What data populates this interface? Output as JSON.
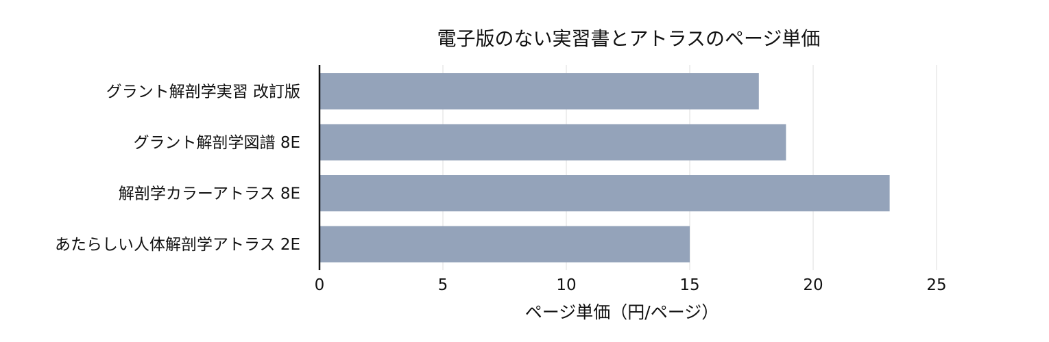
{
  "chart_data": {
    "type": "bar",
    "orientation": "horizontal",
    "title": "電子版のない実習書とアトラスのページ単価",
    "xlabel": "ページ単価（円/ページ）",
    "ylabel": "",
    "categories": [
      "グラント解剖学実習 改訂版",
      "グラント解剖学図譜 8E",
      "解剖学カラーアトラス 8E",
      "あたらしい人体解剖学アトラス 2E"
    ],
    "values": [
      17.8,
      18.9,
      23.1,
      15.0
    ],
    "xlim": [
      0,
      28
    ],
    "xticks": [
      0,
      5,
      10,
      15,
      20,
      25
    ],
    "grid": "vertical",
    "legend": "none",
    "bar_color": "#94a3ba"
  }
}
